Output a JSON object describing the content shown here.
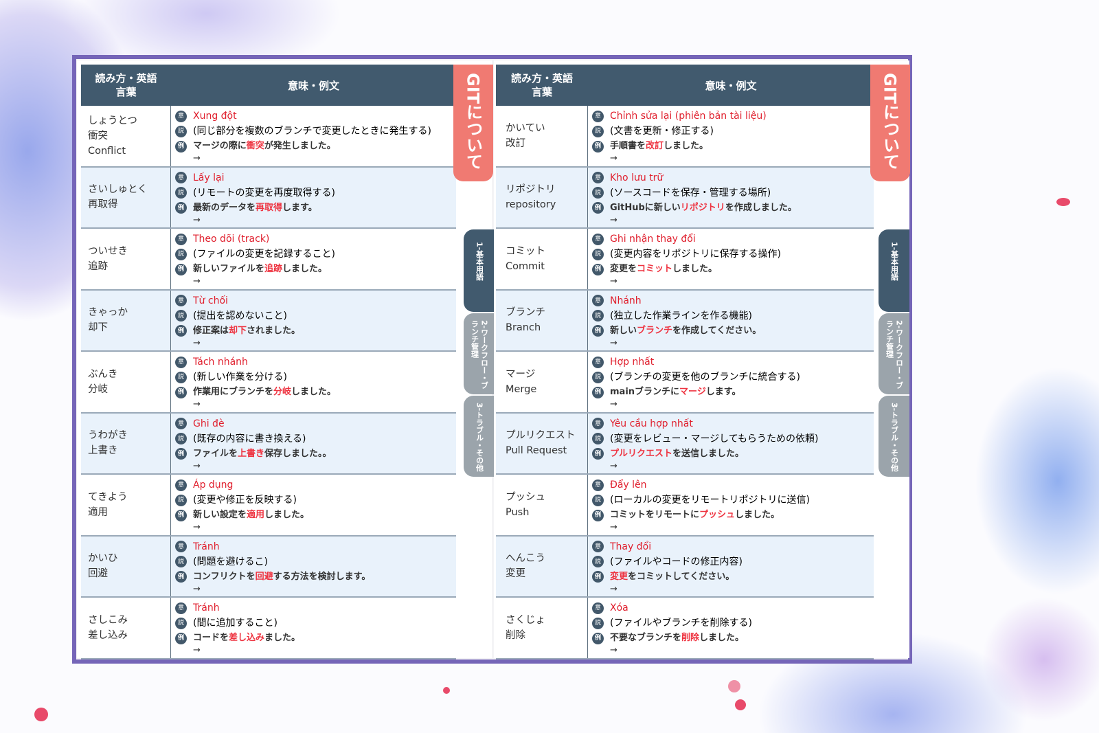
{
  "header": {
    "col1": "読み方・英語\n言葉",
    "col2": "意味・例文"
  },
  "badges": {
    "meaning": "意",
    "explain": "説",
    "example": "例"
  },
  "arrow": "→",
  "side_tabs": {
    "main": "GITについて",
    "tab1": "1-基本用語",
    "tab2": "2-ワークフロー・ブランチ管理",
    "tab3": "3-トラブル・その他",
    "active": "tab1"
  },
  "colors": {
    "header": "#415a6e",
    "accent_red": "#e0202e",
    "tab_pink": "#f07a72",
    "frame": "#7565b8"
  },
  "left_page": [
    {
      "reading": "しょうとつ",
      "kanji": "衝突",
      "english": "Conflict",
      "vi": "Xung đột",
      "explain": "(同じ部分を複数のブランチで変更したときに発生する)",
      "ex_pre": "マージの際に",
      "ex_hl": "衝突",
      "ex_post": "が発生しました。"
    },
    {
      "reading": "さいしゅとく",
      "kanji": "再取得",
      "english": "",
      "vi": "Lấy lại",
      "explain": "(リモートの変更を再度取得する)",
      "ex_pre": "最新のデータを",
      "ex_hl": "再取得",
      "ex_post": "します。"
    },
    {
      "reading": "ついせき",
      "kanji": "追跡",
      "english": "",
      "vi": "Theo dõi (track)",
      "explain": "(ファイルの変更を記録すること)",
      "ex_pre": "新しいファイルを",
      "ex_hl": "追跡",
      "ex_post": "しました。"
    },
    {
      "reading": "きゃっか",
      "kanji": "却下",
      "english": "",
      "vi": "Từ chối",
      "explain": "(提出を認めないこと)",
      "ex_pre": "修正案は",
      "ex_hl": "却下",
      "ex_post": "されました。"
    },
    {
      "reading": "ぶんき",
      "kanji": "分岐",
      "english": "",
      "vi": "Tách nhánh",
      "explain": "(新しい作業を分ける)",
      "ex_pre": "作業用にブランチを",
      "ex_hl": "分岐",
      "ex_post": "しました。"
    },
    {
      "reading": "うわがき",
      "kanji": "上書き",
      "english": "",
      "vi": "Ghi đè",
      "explain": " (既存の内容に書き換える)",
      "ex_pre": "ファイルを",
      "ex_hl": "上書き",
      "ex_post": "保存しました。。"
    },
    {
      "reading": "てきよう",
      "kanji": "適用",
      "english": "",
      "vi": "Áp dụng",
      "explain": "(変更や修正を反映する)",
      "ex_pre": "新しい設定を",
      "ex_hl": "適用",
      "ex_post": "しました。"
    },
    {
      "reading": "かいひ",
      "kanji": "回避",
      "english": "",
      "vi": "Tránh",
      "explain": "(問題を避けるこ)",
      "ex_pre": "コンフリクトを",
      "ex_hl": "回避",
      "ex_post": "する方法を検討します。"
    },
    {
      "reading": "さしこみ",
      "kanji": "差し込み",
      "english": "",
      "vi": "Tránh",
      "explain": "(間に追加すること)",
      "ex_pre": "コードを",
      "ex_hl": "差し込み",
      "ex_post": "ました。"
    }
  ],
  "right_page": [
    {
      "reading": "かいてい",
      "kanji": "改訂",
      "english": "",
      "vi": "Chỉnh sửa lại (phiên bản tài liệu)",
      "explain": "(文書を更新・修正する)",
      "ex_pre": "手順書を",
      "ex_hl": "改訂",
      "ex_post": "しました。"
    },
    {
      "reading": "リポジトリ",
      "kanji": "",
      "english": "repository",
      "vi": "Kho lưu trữ",
      "explain": "(ソースコードを保存・管理する場所)",
      "ex_pre": "GitHubに新しい",
      "ex_hl": "リポジトリ",
      "ex_post": "を作成しました。"
    },
    {
      "reading": "コミット",
      "kanji": "",
      "english": "Commit",
      "vi": "Ghi nhận thay đổi",
      "explain": "(変更内容をリポジトリに保存する操作)",
      "ex_pre": "変更を",
      "ex_hl": "コミット",
      "ex_post": "しました。"
    },
    {
      "reading": "ブランチ",
      "kanji": "",
      "english": "Branch",
      "vi": "Nhánh",
      "explain": "(独立した作業ラインを作る機能)",
      "ex_pre": "新しい",
      "ex_hl": "ブランチ",
      "ex_post": "を作成してください。"
    },
    {
      "reading": "マージ",
      "kanji": "",
      "english": "Merge",
      "vi": "Hợp nhất",
      "explain": "(ブランチの変更を他のブランチに統合する)",
      "ex_pre": "mainブランチに",
      "ex_hl": "マージ",
      "ex_post": "します。"
    },
    {
      "reading": "プルリクエスト",
      "kanji": "",
      "english": "Pull Request",
      "vi": "Yêu cầu hợp nhất",
      "explain": "(変更をレビュー・マージしてもらうための依頼)",
      "ex_pre": "",
      "ex_hl": "プルリクエスト",
      "ex_post": "を送信しました。"
    },
    {
      "reading": "プッシュ",
      "kanji": "",
      "english": "Push",
      "vi": "Đẩy lên",
      "explain": "(ローカルの変更をリモートリポジトリに送信)",
      "ex_pre": "コミットをリモートに",
      "ex_hl": "プッシュ",
      "ex_post": "しました。"
    },
    {
      "reading": "へんこう",
      "kanji": "変更",
      "english": "",
      "vi": "Thay đổi",
      "explain": "(ファイルやコードの修正内容)",
      "ex_pre": "",
      "ex_hl": "変更",
      "ex_post": "をコミットしてください。"
    },
    {
      "reading": "さくじょ",
      "kanji": "削除",
      "english": "",
      "vi": "Xóa",
      "explain": "(ファイルやブランチを削除する)",
      "ex_pre": "不要なブランチを",
      "ex_hl": "削除",
      "ex_post": "しました。"
    }
  ]
}
